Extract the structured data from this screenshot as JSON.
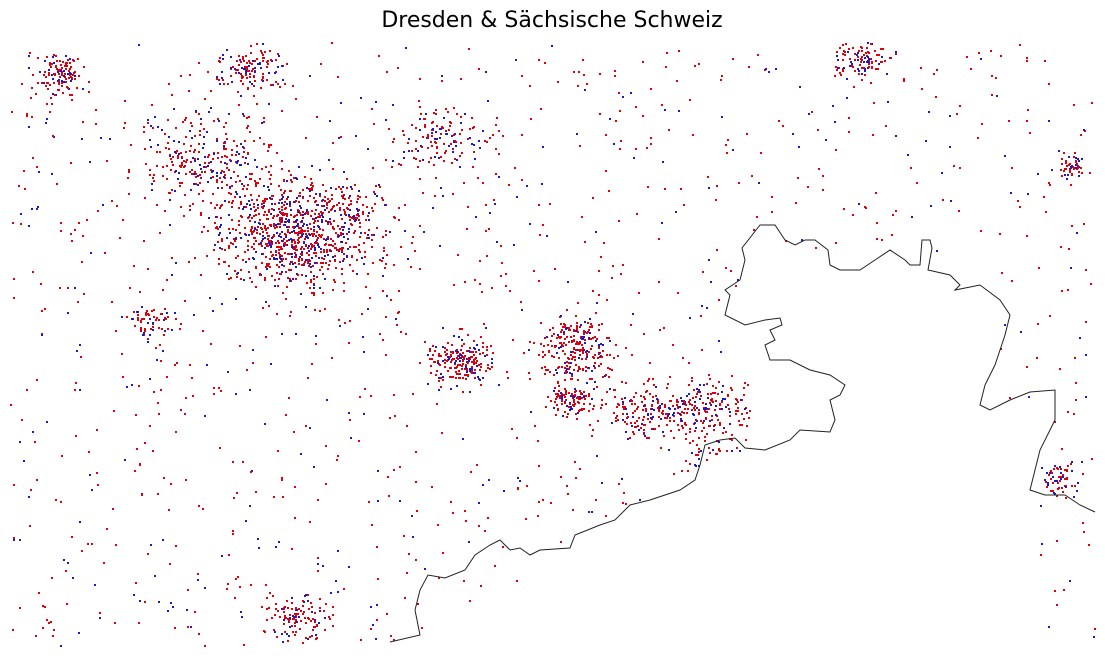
{
  "title": "Dresden & Sächsische Schweiz"
}
